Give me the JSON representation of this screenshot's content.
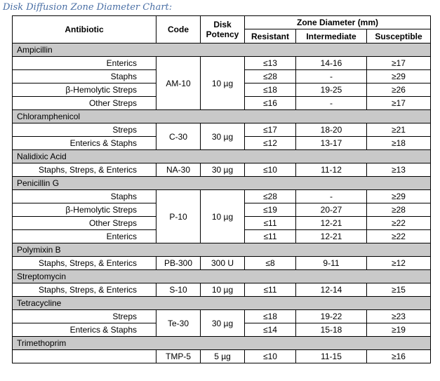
{
  "title": "Disk Diffusion Zone Diameter Chart:",
  "headers": {
    "antibiotic": "Antibiotic",
    "code": "Code",
    "potency_line1": "Disk",
    "potency_line2": "Potency",
    "zone": "Zone Diameter (mm)",
    "resistant": "Resistant",
    "intermediate": "Intermediate",
    "susceptible": "Susceptible"
  },
  "groups": [
    {
      "name": "Ampicillin",
      "code": "AM-10",
      "potency": "10 µg",
      "rows": [
        {
          "organism": "Enterics",
          "r": "≤13",
          "i": "14-16",
          "s": "≥17"
        },
        {
          "organism": "Staphs",
          "r": "≤28",
          "i": "-",
          "s": "≥29"
        },
        {
          "organism": "β-Hemolytic Streps",
          "r": "≤18",
          "i": "19-25",
          "s": "≥26"
        },
        {
          "organism": "Other Streps",
          "r": "≤16",
          "i": "-",
          "s": "≥17"
        }
      ]
    },
    {
      "name": "Chloramphenicol",
      "code": "C-30",
      "potency": "30 µg",
      "rows": [
        {
          "organism": "Streps",
          "r": "≤17",
          "i": "18-20",
          "s": "≥21"
        },
        {
          "organism": "Enterics & Staphs",
          "r": "≤12",
          "i": "13-17",
          "s": "≥18"
        }
      ]
    },
    {
      "name": "Nalidixic Acid",
      "code": "NA-30",
      "potency": "30 µg",
      "rows": [
        {
          "organism": "Staphs, Streps, & Enterics",
          "r": "≤10",
          "i": "11-12",
          "s": "≥13"
        }
      ]
    },
    {
      "name": "Penicillin G",
      "code": "P-10",
      "potency": "10 µg",
      "rows": [
        {
          "organism": "Staphs",
          "r": "≤28",
          "i": "-",
          "s": "≥29"
        },
        {
          "organism": "β-Hemolytic Streps",
          "r": "≤19",
          "i": "20-27",
          "s": "≥28"
        },
        {
          "organism": "Other Streps",
          "r": "≤11",
          "i": "12-21",
          "s": "≥22"
        },
        {
          "organism": "Enterics",
          "r": "≤11",
          "i": "12-21",
          "s": "≥22"
        }
      ]
    },
    {
      "name": "Polymixin B",
      "code": "PB-300",
      "potency": "300 U",
      "rows": [
        {
          "organism": "Staphs, Streps, & Enterics",
          "r": "≤8",
          "i": "9-11",
          "s": "≥12"
        }
      ]
    },
    {
      "name": "Streptomycin",
      "code": "S-10",
      "potency": "10 µg",
      "rows": [
        {
          "organism": "Staphs, Streps, & Enterics",
          "r": "≤11",
          "i": "12-14",
          "s": "≥15"
        }
      ]
    },
    {
      "name": "Tetracycline",
      "code": "Te-30",
      "potency": "30 µg",
      "rows": [
        {
          "organism": "Streps",
          "r": "≤18",
          "i": "19-22",
          "s": "≥23"
        },
        {
          "organism": "Enterics & Staphs",
          "r": "≤14",
          "i": "15-18",
          "s": "≥19"
        }
      ]
    },
    {
      "name": "Trimethoprim",
      "code": "TMP-5",
      "potency": "5 µg",
      "rows": [
        {
          "organism": "",
          "r": "≤10",
          "i": "11-15",
          "s": "≥16"
        }
      ]
    }
  ]
}
